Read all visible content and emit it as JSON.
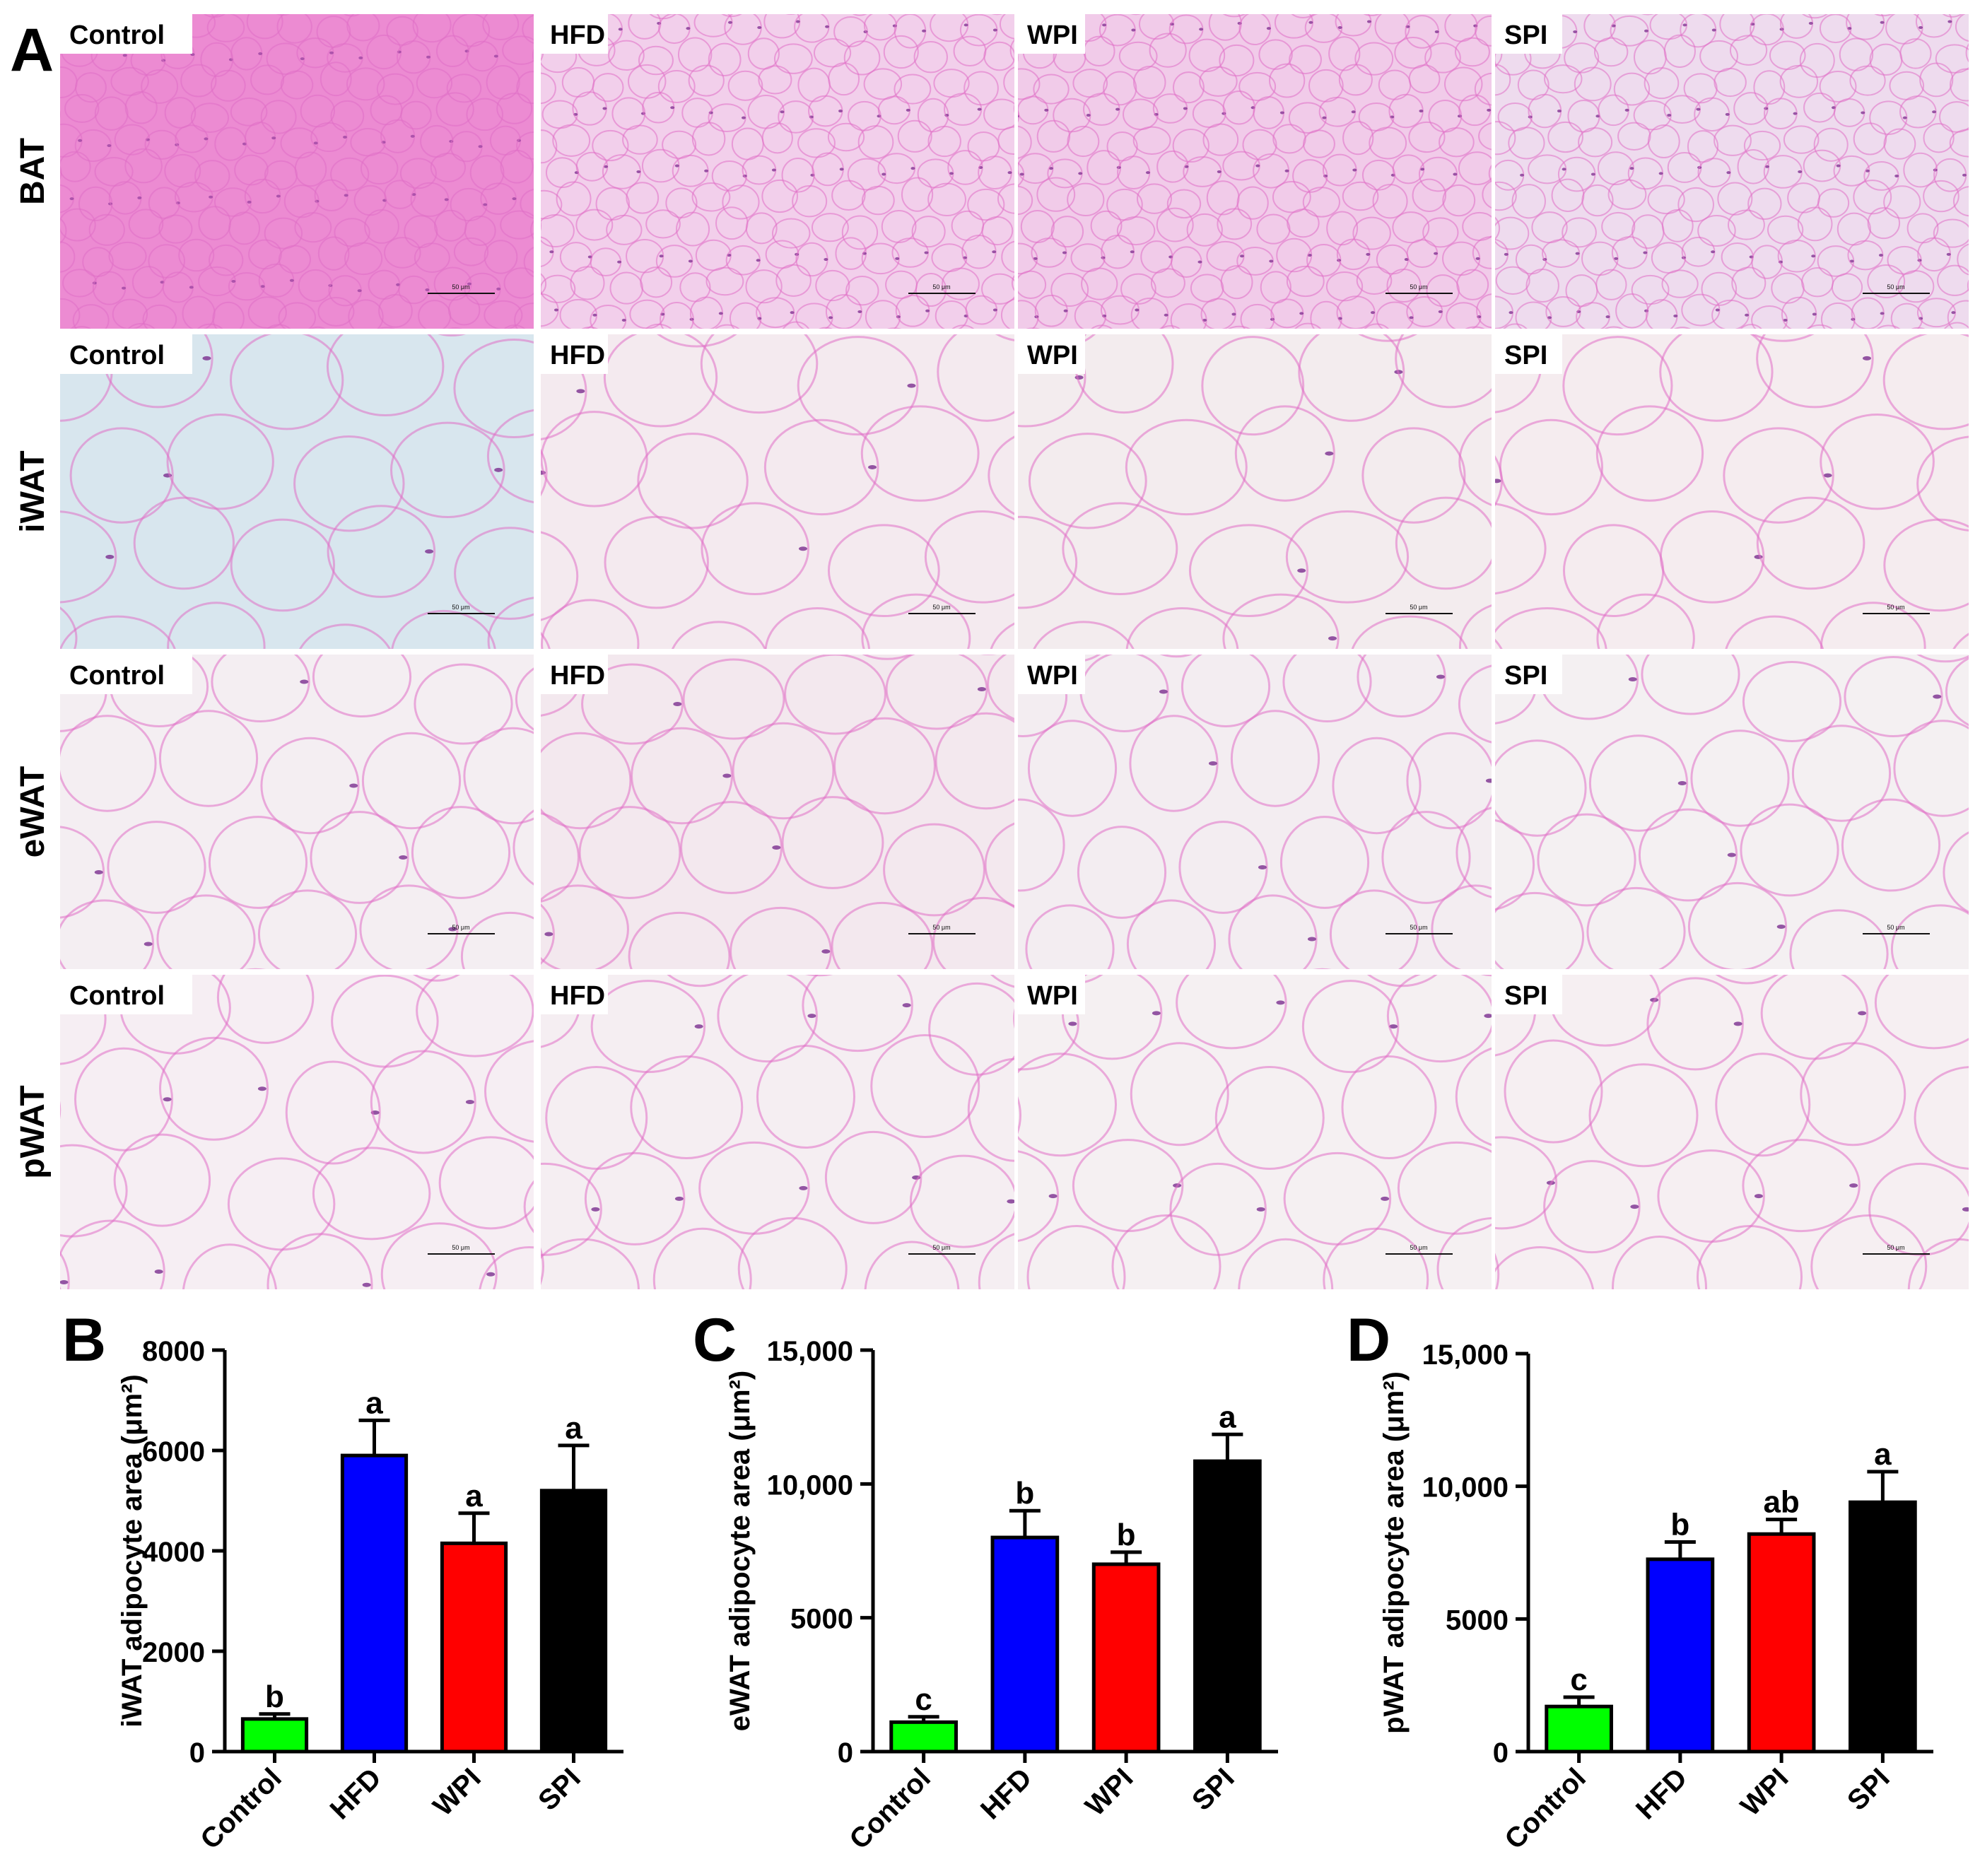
{
  "panel_letters": {
    "a": "A",
    "b": "B",
    "c": "C",
    "d": "D"
  },
  "histology": {
    "row_labels": [
      "BAT",
      "iWAT",
      "eWAT",
      "pWAT"
    ],
    "column_labels": [
      "Control",
      "HFD",
      "WPI",
      "SPI"
    ],
    "scale_bar_text": "50 μm",
    "tissue_colors": {
      "BAT": [
        "#f39ad9",
        "#f4d7ee",
        "#f2d3ec",
        "#efe4f1"
      ],
      "iWAT": [
        "#d8e6ee",
        "#f4eaef",
        "#f3ecee",
        "#f5ecef"
      ],
      "eWAT": [
        "#f4eef2",
        "#f3e8ee",
        "#f3edf1",
        "#f4f0f2"
      ],
      "pWAT": [
        "#f6eef3",
        "#f5eef2",
        "#f5f0f2",
        "#f6eff2"
      ]
    },
    "membrane_color": "#e06fc6",
    "nucleus_color": "#7a2e8e"
  },
  "chart_data": [
    {
      "type": "bar",
      "panel": "B",
      "categories": [
        "Control",
        "HFD",
        "WPI",
        "SPI"
      ],
      "values": [
        650,
        5900,
        4150,
        5200
      ],
      "errors": [
        100,
        700,
        600,
        900
      ],
      "significance": [
        "b",
        "a",
        "a",
        "a"
      ],
      "colors": [
        "#00ff00",
        "#0000ff",
        "#ff0000",
        "#000000"
      ],
      "ylabel": "iWAT adipocyte area (μm²)",
      "ylim": [
        0,
        8000
      ],
      "yticks": [
        0,
        2000,
        4000,
        6000,
        8000
      ],
      "ytick_labels": [
        "0",
        "2000",
        "4000",
        "6000",
        "8000"
      ]
    },
    {
      "type": "bar",
      "panel": "C",
      "categories": [
        "Control",
        "HFD",
        "WPI",
        "SPI"
      ],
      "values": [
        1100,
        8000,
        7000,
        10850
      ],
      "errors": [
        200,
        1000,
        450,
        1000
      ],
      "significance": [
        "c",
        "b",
        "b",
        "a"
      ],
      "colors": [
        "#00ff00",
        "#0000ff",
        "#ff0000",
        "#000000"
      ],
      "ylabel": "eWAT adipocyte area (μm²)",
      "ylim": [
        0,
        15000
      ],
      "yticks": [
        0,
        5000,
        10000,
        15000
      ],
      "ytick_labels": [
        "0",
        "5000",
        "10,000",
        "15,000"
      ]
    },
    {
      "type": "bar",
      "panel": "D",
      "categories": [
        "Control",
        "HFD",
        "WPI",
        "SPI"
      ],
      "values": [
        1700,
        7250,
        8200,
        9400
      ],
      "errors": [
        350,
        650,
        550,
        1150
      ],
      "significance": [
        "c",
        "b",
        "ab",
        "a"
      ],
      "colors": [
        "#00ff00",
        "#0000ff",
        "#ff0000",
        "#000000"
      ],
      "ylabel": "pWAT adipocyte area (μm²)",
      "ylim": [
        0,
        15000
      ],
      "yticks": [
        0,
        5000,
        10000,
        15000
      ],
      "ytick_labels": [
        "0",
        "5000",
        "10,000",
        "15,000"
      ]
    }
  ]
}
